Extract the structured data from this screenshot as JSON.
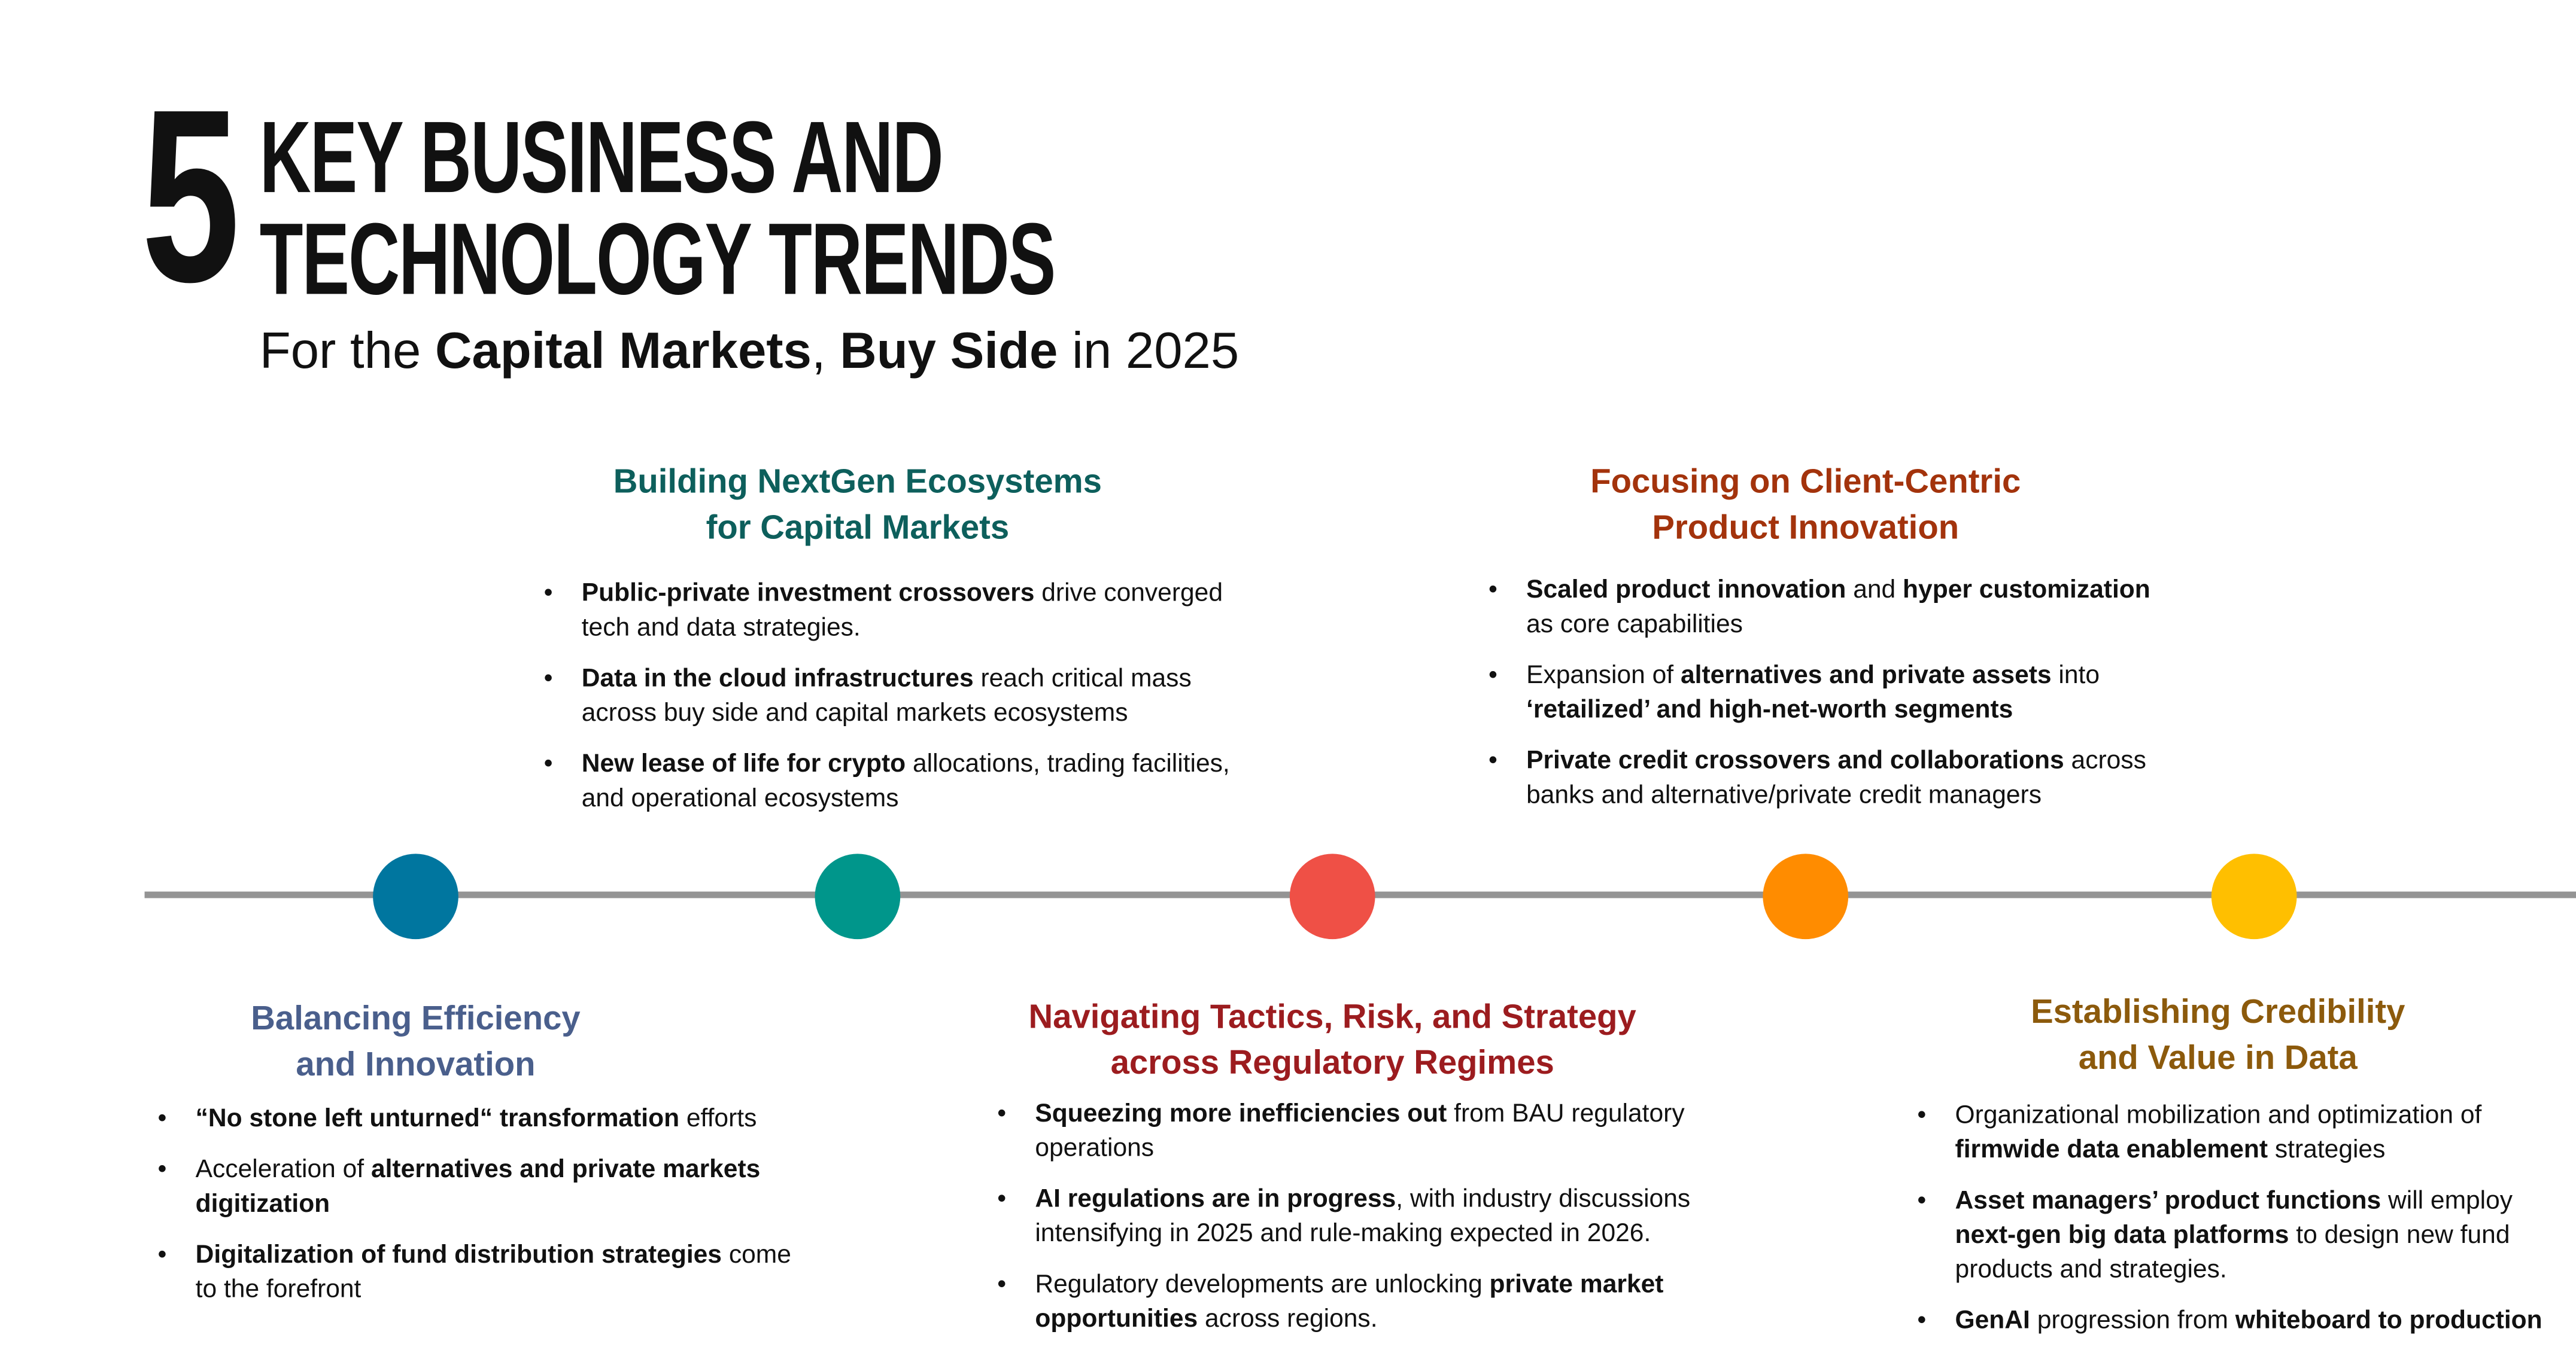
{
  "title": {
    "number": "5",
    "line1": "KEY BUSINESS AND",
    "line2": "TECHNOLOGY TRENDS",
    "subtitle": [
      {
        "t": "For the ",
        "b": false
      },
      {
        "t": "Capital Markets",
        "b": true
      },
      {
        "t": ", ",
        "b": false
      },
      {
        "t": "Buy Side",
        "b": true
      },
      {
        "t": " in 2025",
        "b": false
      }
    ]
  },
  "colors": {
    "axis": "#949494",
    "dots": [
      "#00769f",
      "#00968b",
      "#ef5046",
      "#ff8c00",
      "#ffbf00"
    ]
  },
  "sections": [
    {
      "heading1": "Balancing Efficiency",
      "heading2": "and Innovation",
      "color": "#4a5f8c",
      "bullets": [
        [
          {
            "t": "“No stone left unturned“ transformation",
            "b": true
          },
          {
            "t": " efforts",
            "b": false
          }
        ],
        [
          {
            "t": "Acceleration of ",
            "b": false
          },
          {
            "t": "alternatives and private markets digitization",
            "b": true
          }
        ],
        [
          {
            "t": "Digitalization of fund distribution strategies",
            "b": true
          },
          {
            "t": " come to the forefront",
            "b": false
          }
        ]
      ]
    },
    {
      "heading1": "Building NextGen Ecosystems",
      "heading2": "for Capital Markets",
      "color": "#0d5f5c",
      "bullets": [
        [
          {
            "t": "Public-private investment crossovers",
            "b": true
          },
          {
            "t": " drive converged tech and data strategies.",
            "b": false
          }
        ],
        [
          {
            "t": "Data in the cloud infrastructures",
            "b": true
          },
          {
            "t": " reach critical mass across buy side and capital markets ecosystems",
            "b": false
          }
        ],
        [
          {
            "t": "New lease of life for crypto",
            "b": true
          },
          {
            "t": " allocations, trading facilities, and operational ecosystems",
            "b": false
          }
        ]
      ]
    },
    {
      "heading1": "Navigating Tactics, Risk, and Strategy",
      "heading2": "across Regulatory Regimes",
      "color": "#9c1c1f",
      "bullets": [
        [
          {
            "t": "Squeezing more inefficiencies out",
            "b": true
          },
          {
            "t": " from BAU regulatory operations",
            "b": false
          }
        ],
        [
          {
            "t": "AI regulations are in progress",
            "b": true
          },
          {
            "t": ", with industry discussions intensifying in 2025 and rule-making expected in 2026.",
            "b": false
          }
        ],
        [
          {
            "t": "Regulatory developments are unlocking ",
            "b": false
          },
          {
            "t": "private market opportunities",
            "b": true
          },
          {
            "t": " across regions.",
            "b": false
          }
        ]
      ]
    },
    {
      "heading1": "Focusing on Client-Centric",
      "heading2": "Product Innovation",
      "color": "#a3330c",
      "bullets": [
        [
          {
            "t": "Scaled product innovation",
            "b": true
          },
          {
            "t": " and ",
            "b": false
          },
          {
            "t": "hyper customization",
            "b": true
          },
          {
            "t": " as core capabilities",
            "b": false
          }
        ],
        [
          {
            "t": "Expansion of ",
            "b": false
          },
          {
            "t": "alternatives and private assets",
            "b": true
          },
          {
            "t": " into ",
            "b": false
          },
          {
            "t": "‘retailized’ and high-net-worth segments",
            "b": true
          }
        ],
        [
          {
            "t": "Private credit crossovers and collaborations",
            "b": true
          },
          {
            "t": " across banks and alternative/private credit managers",
            "b": false
          }
        ]
      ]
    },
    {
      "heading1": "Establishing Credibility",
      "heading2": "and Value in Data",
      "color": "#8c5a0c",
      "bullets": [
        [
          {
            "t": "Organizational mobilization and optimization of ",
            "b": false
          },
          {
            "t": "firmwide data enablement",
            "b": true
          },
          {
            "t": " strategies",
            "b": false
          }
        ],
        [
          {
            "t": "Asset managers’ product functions",
            "b": true
          },
          {
            "t": " will employ ",
            "b": false
          },
          {
            "t": "next-gen big data platforms",
            "b": true
          },
          {
            "t": " to design new fund products and strategies.",
            "b": false
          }
        ],
        [
          {
            "t": "GenAI",
            "b": true
          },
          {
            "t": " progression from ",
            "b": false
          },
          {
            "t": "whiteboard to production",
            "b": true
          }
        ]
      ]
    }
  ]
}
